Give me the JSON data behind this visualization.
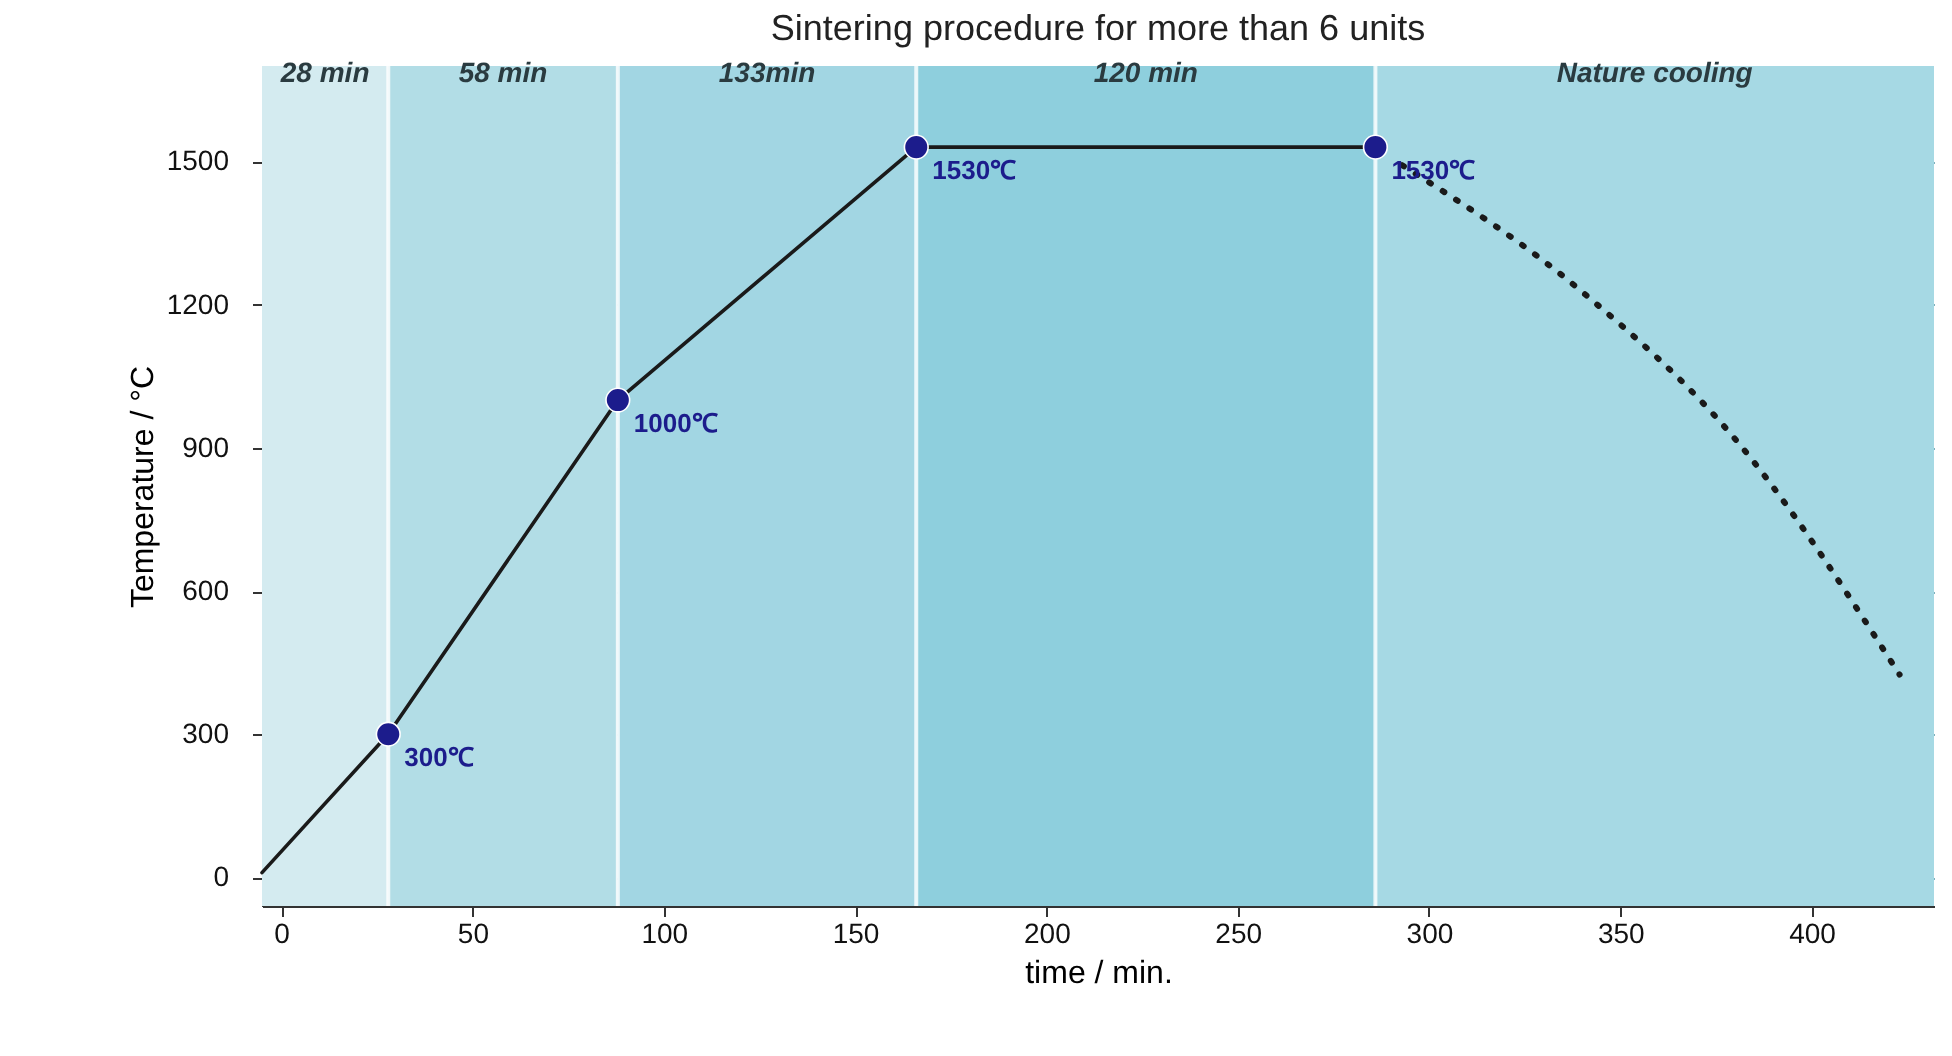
{
  "chart_data": {
    "type": "line",
    "title": "Sintering procedure for more than 6 units",
    "xlabel": "time / min.",
    "ylabel": "Temperature / °C",
    "xlim": [
      -5,
      432
    ],
    "ylim": [
      -60,
      1700
    ],
    "xticks": [
      0,
      50,
      100,
      150,
      200,
      250,
      300,
      350,
      400
    ],
    "yticks": [
      0,
      300,
      600,
      900,
      1200,
      1500
    ],
    "grid": "y",
    "bands": [
      {
        "axis": "x",
        "from": -5,
        "to": 28,
        "label": "28 min",
        "color": "#d4ebf0"
      },
      {
        "axis": "x",
        "from": 28,
        "to": 88,
        "label": "58 min",
        "color": "#b2dde6"
      },
      {
        "axis": "x",
        "from": 88,
        "to": 166,
        "label": "133min",
        "color": "#a2d6e3"
      },
      {
        "axis": "x",
        "from": 166,
        "to": 286,
        "label": "120 min",
        "color": "#8ecfdd"
      },
      {
        "axis": "x",
        "from": 286,
        "to": 432,
        "label": "Nature cooling",
        "color": "#a6d9e4"
      }
    ],
    "series": [
      {
        "color": "#1a1a1a",
        "x": [
          -5,
          28,
          88,
          166,
          286
        ],
        "values": [
          10,
          300,
          1000,
          1530,
          1530
        ],
        "line_style": "solid"
      },
      {
        "color": "#1a1a1a",
        "x": [
          293,
          340,
          381,
          423
        ],
        "values": [
          1492,
          1227,
          909,
          425
        ],
        "line_style": "dotted"
      },
      {
        "type": "scatter",
        "color": "#1c1c8c",
        "marker": "circle",
        "x": [
          28,
          88,
          166,
          286
        ],
        "values": [
          300,
          1000,
          1530,
          1530
        ],
        "value_labels": [
          "300℃",
          "1000℃",
          "1530℃",
          "1530℃"
        ]
      }
    ]
  }
}
